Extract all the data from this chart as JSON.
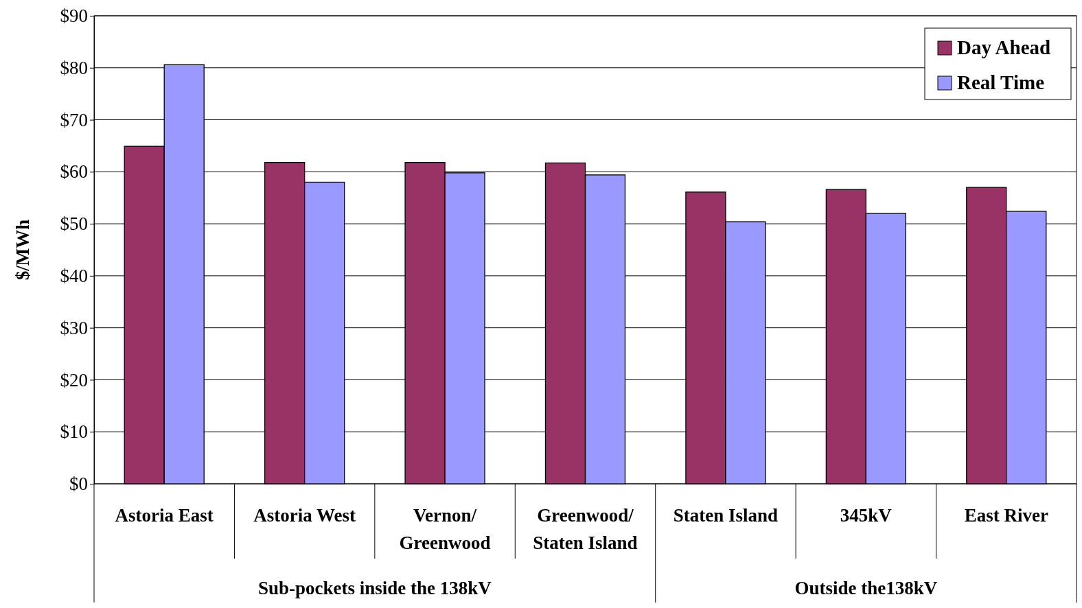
{
  "chart_data": {
    "type": "bar",
    "ylabel": "$/MWh",
    "categories": [
      "Astoria East",
      "Astoria West",
      "Vernon/\nGreenwood",
      "Greenwood/\nStaten Island",
      "Staten Island",
      "345kV",
      "East River"
    ],
    "series": [
      {
        "name": "Day Ahead",
        "color": "#993366",
        "values": [
          64.9,
          61.8,
          61.8,
          61.7,
          56.1,
          56.6,
          57.0
        ]
      },
      {
        "name": "Real Time",
        "color": "#9999ff",
        "values": [
          80.6,
          58.0,
          59.8,
          59.4,
          50.4,
          52.0,
          52.4
        ]
      }
    ],
    "ylim": [
      0,
      90
    ],
    "yticks": [
      {
        "value": 0,
        "label": "$0"
      },
      {
        "value": 10,
        "label": "$10"
      },
      {
        "value": 20,
        "label": "$20"
      },
      {
        "value": 30,
        "label": "$30"
      },
      {
        "value": 40,
        "label": "$40"
      },
      {
        "value": 50,
        "label": "$50"
      },
      {
        "value": 60,
        "label": "$60"
      },
      {
        "value": 70,
        "label": "$70"
      },
      {
        "value": 80,
        "label": "$80"
      },
      {
        "value": 90,
        "label": "$90"
      }
    ],
    "grid": "y",
    "legend": "top right",
    "annotations": [
      "Sub-pockets inside the 138kV",
      "Outside the138kV"
    ]
  }
}
